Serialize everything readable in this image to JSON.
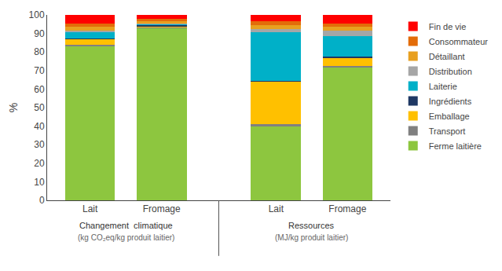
{
  "chart_data": {
    "type": "bar",
    "stacked": true,
    "categories": [
      "Lait",
      "Fromage",
      "Lait",
      "Fromage"
    ],
    "series": [
      {
        "name": "Ferme laitière",
        "color": "#8dc63f",
        "values": [
          83,
          93,
          40,
          72
        ]
      },
      {
        "name": "Transport",
        "color": "#808080",
        "values": [
          1,
          0.5,
          1,
          0.5
        ]
      },
      {
        "name": "Emballage",
        "color": "#ffc000",
        "values": [
          3,
          0.5,
          23,
          4
        ]
      },
      {
        "name": "Ingrédients",
        "color": "#1f3864",
        "values": [
          0.5,
          0.5,
          0.5,
          1
        ]
      },
      {
        "name": "Laiterie",
        "color": "#00b0c8",
        "values": [
          3,
          0.5,
          26,
          11
        ]
      },
      {
        "name": "Distribution",
        "color": "#a6a6a6",
        "values": [
          1,
          0.5,
          2,
          3
        ]
      },
      {
        "name": "Détaillant",
        "color": "#e8a020",
        "values": [
          2,
          1,
          2,
          2
        ]
      },
      {
        "name": "Consommateur",
        "color": "#e36c09",
        "values": [
          2,
          1.5,
          2,
          2
        ]
      },
      {
        "name": "Fin de vie",
        "color": "#ff0000",
        "values": [
          4.5,
          2,
          3.5,
          4.5
        ]
      }
    ],
    "y_label": "%",
    "ylim": [
      0,
      100
    ],
    "yticks": [
      0,
      10,
      20,
      30,
      40,
      50,
      60,
      70,
      80,
      90,
      100
    ],
    "annotations": [
      [
        "Changement  climatique",
        "(kg CO₂eq/kg produit laitier)"
      ],
      [
        "Ressources",
        "(MJ/kg produit laitier)"
      ]
    ],
    "grid": false,
    "legend": "right"
  }
}
